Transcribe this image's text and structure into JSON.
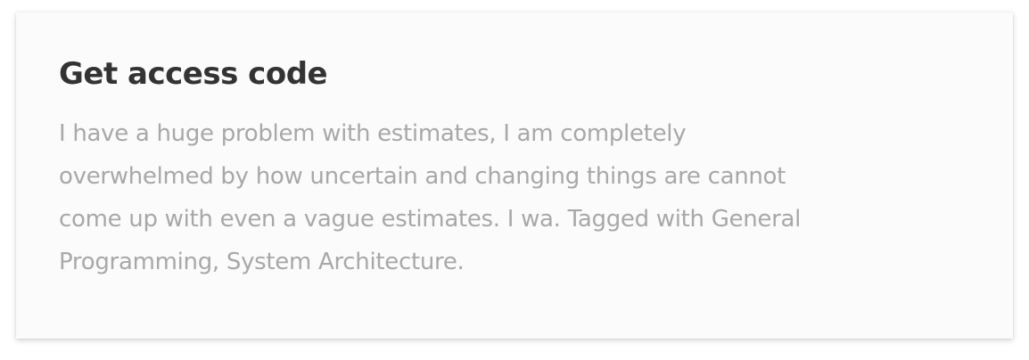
{
  "card": {
    "title": "Get access code",
    "description": "I have a huge problem with estimates, I am completely overwhelmed by how uncertain and changing things are cannot come up with even a vague estimates. I wa. Tagged with General Programming, System Architecture."
  }
}
